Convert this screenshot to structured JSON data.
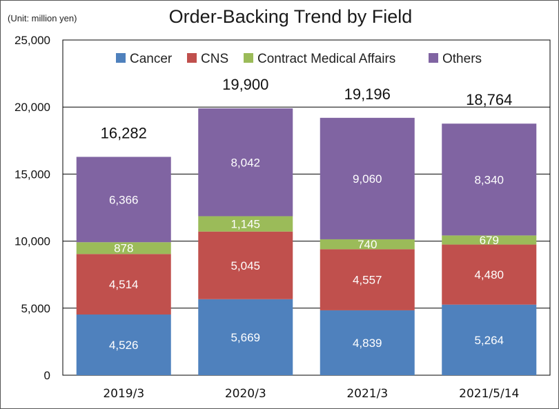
{
  "unit_note": "(Unit: million yen)",
  "chart_data": {
    "type": "bar",
    "stacked": true,
    "title": "Order-Backing Trend by Field",
    "categories": [
      "2019/3",
      "2020/3",
      "2021/3",
      "2021/5/14"
    ],
    "series": [
      {
        "name": "Cancer",
        "color": "#4f81bd",
        "values": [
          4526,
          5669,
          4839,
          5264
        ]
      },
      {
        "name": "CNS",
        "color": "#c0504d",
        "values": [
          4514,
          5045,
          4557,
          4480
        ]
      },
      {
        "name": "Contract Medical Affairs",
        "color": "#9bbb59",
        "values": [
          878,
          1145,
          740,
          679
        ]
      },
      {
        "name": "Others",
        "color": "#8064a2",
        "values": [
          6366,
          8042,
          9060,
          8340
        ]
      }
    ],
    "series_labels": [
      [
        "4,526",
        "5,669",
        "4,839",
        "5,264"
      ],
      [
        "4,514",
        "5,045",
        "4,557",
        "4,480"
      ],
      [
        "878",
        "1,145",
        "740",
        "679"
      ],
      [
        "6,366",
        "8,042",
        "9,060",
        "8,340"
      ]
    ],
    "totals": [
      16282,
      19900,
      19196,
      18764
    ],
    "total_labels": [
      "16,282",
      "19,900",
      "19,196",
      "18,764"
    ],
    "ylim": [
      0,
      25000
    ],
    "yticks": [
      0,
      5000,
      10000,
      15000,
      20000,
      25000
    ],
    "ytick_labels": [
      "0",
      "5,000",
      "10,000",
      "15,000",
      "20,000",
      "25,000"
    ],
    "grid": true,
    "legend_position": "top"
  }
}
